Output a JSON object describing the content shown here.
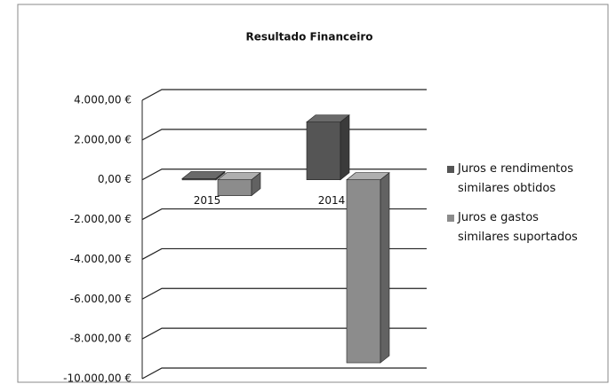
{
  "chart_data": {
    "type": "bar3d",
    "title": "Resultado Financeiro",
    "categories": [
      "2015",
      "2014"
    ],
    "series": [
      {
        "name": "Juros e rendimentos similares obtidos",
        "color": "#555555",
        "values": [
          60,
          2900
        ]
      },
      {
        "name": "Juros e gastos similares suportados",
        "color": "#8c8c8c",
        "values": [
          -800,
          -9200
        ]
      }
    ],
    "ylim": [
      -10000,
      4000
    ],
    "yticks": [
      {
        "value": -10000,
        "label": "-10.000,00 €"
      },
      {
        "value": -8000,
        "label": "-8.000,00 €"
      },
      {
        "value": -6000,
        "label": "-6.000,00 €"
      },
      {
        "value": -4000,
        "label": "-4.000,00 €"
      },
      {
        "value": -2000,
        "label": "-2.000,00 €"
      },
      {
        "value": 0,
        "label": "0,00 €"
      },
      {
        "value": 2000,
        "label": "2.000,00 €"
      },
      {
        "value": 4000,
        "label": "4.000,00 €"
      }
    ],
    "grid": true,
    "legend": "right"
  }
}
